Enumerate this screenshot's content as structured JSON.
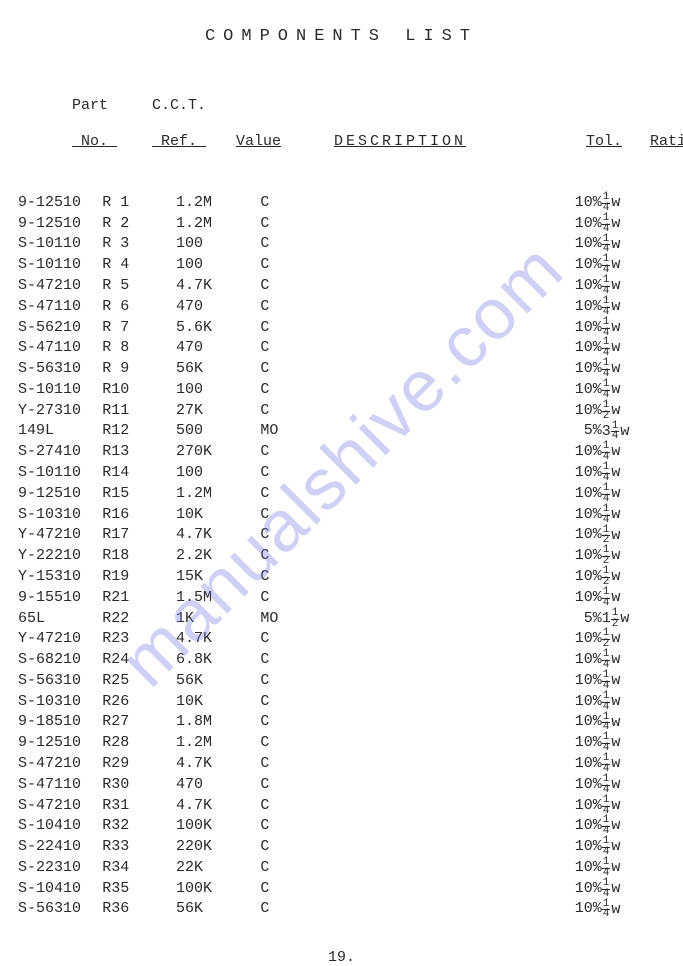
{
  "title": "COMPONENTS LIST",
  "pageNumber": "19.",
  "watermark": "manualshive.com",
  "headers": {
    "part": {
      "line1": "Part",
      "line2": "No."
    },
    "ref": {
      "line1": "C.C.T.",
      "line2": "Ref."
    },
    "value": {
      "line1": "",
      "line2": "Value"
    },
    "desc": {
      "line1": "",
      "line2": "DESCRIPTION"
    },
    "tol": {
      "line1": "",
      "line2": "Tol."
    },
    "rating": {
      "line1": "",
      "line2": "Rating"
    }
  },
  "rows": [
    {
      "part": "9-12510",
      "ref": "R 1",
      "value": "1.2M",
      "desc": "C",
      "tol": "10%",
      "wn": "",
      "fn": "1",
      "fd": "4"
    },
    {
      "part": "9-12510",
      "ref": "R 2",
      "value": "1.2M",
      "desc": "C",
      "tol": "10%",
      "wn": "",
      "fn": "1",
      "fd": "4"
    },
    {
      "part": "S-10110",
      "ref": "R 3",
      "value": "100",
      "desc": "C",
      "tol": "10%",
      "wn": "",
      "fn": "1",
      "fd": "4"
    },
    {
      "part": "S-10110",
      "ref": "R 4",
      "value": "100",
      "desc": "C",
      "tol": "10%",
      "wn": "",
      "fn": "1",
      "fd": "4"
    },
    {
      "part": "S-47210",
      "ref": "R 5",
      "value": "4.7K",
      "desc": "C",
      "tol": "10%",
      "wn": "",
      "fn": "1",
      "fd": "4"
    },
    {
      "part": "S-47110",
      "ref": "R 6",
      "value": "470",
      "desc": "C",
      "tol": "10%",
      "wn": "",
      "fn": "1",
      "fd": "4"
    },
    {
      "part": "S-56210",
      "ref": "R 7",
      "value": "5.6K",
      "desc": "C",
      "tol": "10%",
      "wn": "",
      "fn": "1",
      "fd": "4"
    },
    {
      "part": "S-47110",
      "ref": "R 8",
      "value": "470",
      "desc": "C",
      "tol": "10%",
      "wn": "",
      "fn": "1",
      "fd": "4"
    },
    {
      "part": "S-56310",
      "ref": "R 9",
      "value": "56K",
      "desc": "C",
      "tol": "10%",
      "wn": "",
      "fn": "1",
      "fd": "4"
    },
    {
      "part": "S-10110",
      "ref": "R10",
      "value": "100",
      "desc": "C",
      "tol": "10%",
      "wn": "",
      "fn": "1",
      "fd": "4"
    },
    {
      "part": "Y-27310",
      "ref": "R11",
      "value": "27K",
      "desc": "C",
      "tol": "10%",
      "wn": "",
      "fn": "1",
      "fd": "2"
    },
    {
      "part": "149L",
      "ref": "R12",
      "value": "500",
      "desc": "MO",
      "tol": "5%",
      "wn": "3",
      "fn": "1",
      "fd": "4"
    },
    {
      "part": "S-27410",
      "ref": "R13",
      "value": "270K",
      "desc": "C",
      "tol": "10%",
      "wn": "",
      "fn": "1",
      "fd": "4"
    },
    {
      "part": "S-10110",
      "ref": "R14",
      "value": "100",
      "desc": "C",
      "tol": "10%",
      "wn": "",
      "fn": "1",
      "fd": "4"
    },
    {
      "part": "9-12510",
      "ref": "R15",
      "value": "1.2M",
      "desc": "C",
      "tol": "10%",
      "wn": "",
      "fn": "1",
      "fd": "4"
    },
    {
      "part": "S-10310",
      "ref": "R16",
      "value": "10K",
      "desc": "C",
      "tol": "10%",
      "wn": "",
      "fn": "1",
      "fd": "4"
    },
    {
      "part": "Y-47210",
      "ref": "R17",
      "value": "4.7K",
      "desc": "C",
      "tol": "10%",
      "wn": "",
      "fn": "1",
      "fd": "2"
    },
    {
      "part": "Y-22210",
      "ref": "R18",
      "value": "2.2K",
      "desc": "C",
      "tol": "10%",
      "wn": "",
      "fn": "1",
      "fd": "2"
    },
    {
      "part": "Y-15310",
      "ref": "R19",
      "value": "15K",
      "desc": "C",
      "tol": "10%",
      "wn": "",
      "fn": "1",
      "fd": "2"
    },
    {
      "part": "9-15510",
      "ref": "R21",
      "value": "1.5M",
      "desc": "C",
      "tol": "10%",
      "wn": "",
      "fn": "1",
      "fd": "4"
    },
    {
      "part": "65L",
      "ref": "R22",
      "value": "1K",
      "desc": "MO",
      "tol": "5%",
      "wn": "1",
      "fn": "1",
      "fd": "2"
    },
    {
      "part": "Y-47210",
      "ref": "R23",
      "value": "4.7K",
      "desc": "C",
      "tol": "10%",
      "wn": "",
      "fn": "1",
      "fd": "2"
    },
    {
      "part": "S-68210",
      "ref": "R24",
      "value": "6.8K",
      "desc": "C",
      "tol": "10%",
      "wn": "",
      "fn": "1",
      "fd": "4"
    },
    {
      "part": "S-56310",
      "ref": "R25",
      "value": "56K",
      "desc": "C",
      "tol": "10%",
      "wn": "",
      "fn": "1",
      "fd": "4"
    },
    {
      "part": "S-10310",
      "ref": "R26",
      "value": "10K",
      "desc": "C",
      "tol": "10%",
      "wn": "",
      "fn": "1",
      "fd": "4"
    },
    {
      "part": "9-18510",
      "ref": "R27",
      "value": "1.8M",
      "desc": "C",
      "tol": "10%",
      "wn": "",
      "fn": "1",
      "fd": "4"
    },
    {
      "part": "9-12510",
      "ref": "R28",
      "value": "1.2M",
      "desc": "C",
      "tol": "10%",
      "wn": "",
      "fn": "1",
      "fd": "4"
    },
    {
      "part": "S-47210",
      "ref": "R29",
      "value": "4.7K",
      "desc": "C",
      "tol": "10%",
      "wn": "",
      "fn": "1",
      "fd": "4"
    },
    {
      "part": "S-47110",
      "ref": "R30",
      "value": "470",
      "desc": "C",
      "tol": "10%",
      "wn": "",
      "fn": "1",
      "fd": "4"
    },
    {
      "part": "S-47210",
      "ref": "R31",
      "value": "4.7K",
      "desc": "C",
      "tol": "10%",
      "wn": "",
      "fn": "1",
      "fd": "4"
    },
    {
      "part": "S-10410",
      "ref": "R32",
      "value": "100K",
      "desc": "C",
      "tol": "10%",
      "wn": "",
      "fn": "1",
      "fd": "4"
    },
    {
      "part": "S-22410",
      "ref": "R33",
      "value": "220K",
      "desc": "C",
      "tol": "10%",
      "wn": "",
      "fn": "1",
      "fd": "4"
    },
    {
      "part": "S-22310",
      "ref": "R34",
      "value": "22K",
      "desc": "C",
      "tol": "10%",
      "wn": "",
      "fn": "1",
      "fd": "4"
    },
    {
      "part": "S-10410",
      "ref": "R35",
      "value": "100K",
      "desc": "C",
      "tol": "10%",
      "wn": "",
      "fn": "1",
      "fd": "4"
    },
    {
      "part": "S-56310",
      "ref": "R36",
      "value": "56K",
      "desc": "C",
      "tol": "10%",
      "wn": "",
      "fn": "1",
      "fd": "4"
    }
  ]
}
